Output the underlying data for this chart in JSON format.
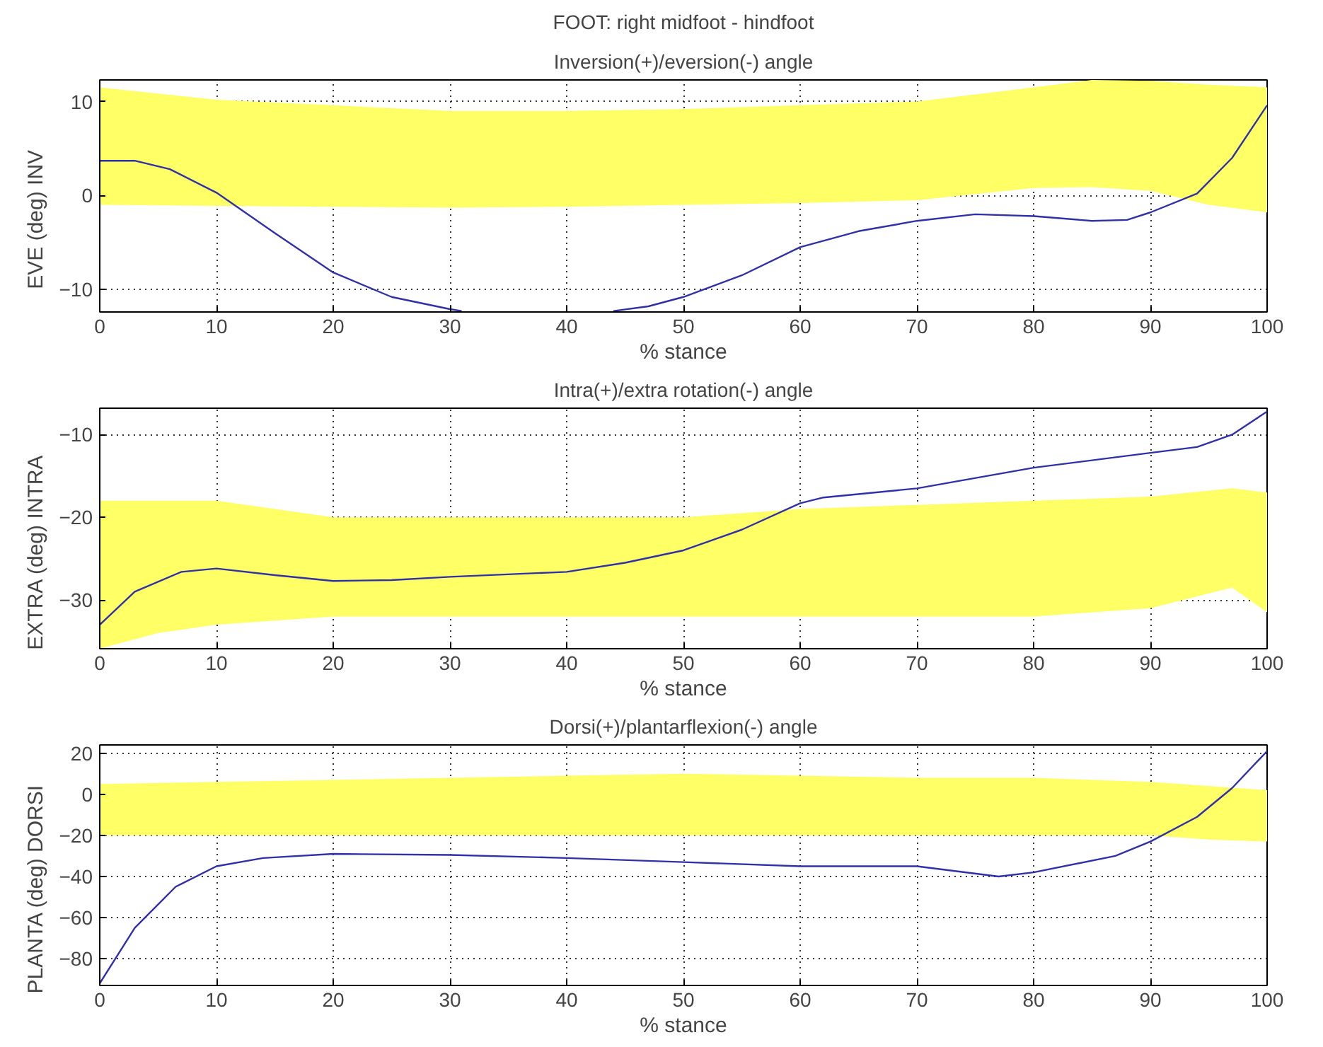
{
  "chart_data": [
    {
      "type": "line",
      "title": "FOOT: right midfoot - hindfoot",
      "subtitle": "Inversion(+)/eversion(-) angle",
      "xlabel": "% stance",
      "ylabel": "EVE     (deg)     INV",
      "xlim": [
        0,
        100
      ],
      "ylim": [
        -12.4,
        12.3
      ],
      "xticks": [
        0,
        10,
        20,
        30,
        40,
        50,
        60,
        70,
        80,
        90,
        100
      ],
      "yticks": [
        -10,
        0,
        10
      ],
      "grid": true,
      "series": [
        {
          "type": "line",
          "color": "#ffff66",
          "x": [
            0,
            10,
            20,
            30,
            40,
            50,
            60,
            70,
            80,
            85,
            90,
            95,
            100
          ],
          "values": [
            null,
            null,
            null,
            null,
            null,
            null,
            null,
            null,
            null,
            null,
            null,
            null,
            null
          ],
          "lower": [
            -1,
            -1.1,
            -1.2,
            -1.3,
            -1.2,
            -1.0,
            -0.8,
            -0.5,
            0.8,
            0.9,
            0.5,
            -1.0,
            -1.8
          ],
          "upper": [
            11.5,
            10.2,
            9.6,
            9.0,
            9.0,
            9.2,
            9.6,
            10.0,
            11.5,
            12.3,
            12.2,
            11.8,
            11.5
          ]
        },
        {
          "type": "line",
          "color": "#3030a8",
          "x": [
            0,
            3,
            6,
            10,
            15,
            20,
            25,
            30,
            31,
            32,
            42,
            44,
            47,
            50,
            55,
            60,
            65,
            70,
            75,
            80,
            85,
            88,
            90,
            94,
            97,
            100
          ],
          "values": [
            3.7,
            3.7,
            2.8,
            0.3,
            -4,
            -8.2,
            -10.8,
            -12.1,
            -12.3,
            null,
            null,
            -12.3,
            -11.8,
            -10.8,
            -8.5,
            -5.5,
            -3.8,
            -2.7,
            -2.0,
            -2.2,
            -2.7,
            -2.6,
            -1.8,
            0.2,
            4,
            9.6
          ]
        }
      ]
    },
    {
      "type": "line",
      "subtitle": "Intra(+)/extra rotation(-) angle",
      "xlabel": "% stance",
      "ylabel": "EXTRA     (deg)     INTRA",
      "xlim": [
        0,
        100
      ],
      "ylim": [
        -35.9,
        -6.8
      ],
      "xticks": [
        0,
        10,
        20,
        30,
        40,
        50,
        60,
        70,
        80,
        90,
        100
      ],
      "yticks": [
        -30,
        -20,
        -10
      ],
      "grid": true,
      "series": [
        {
          "type": "line",
          "color": "#ffff66",
          "x": [
            0,
            5,
            10,
            20,
            30,
            40,
            50,
            60,
            70,
            80,
            90,
            97,
            100
          ],
          "values": [
            null,
            null,
            null,
            null,
            null,
            null,
            null,
            null,
            null,
            null,
            null,
            null,
            null
          ],
          "lower": [
            -35.9,
            -34,
            -33,
            -32,
            -32,
            -32,
            -32,
            -32,
            -32,
            -32,
            -31,
            -28.5,
            -31.5
          ],
          "upper": [
            -18,
            -18,
            -18,
            -20,
            -20,
            -20,
            -20,
            -19,
            -18.5,
            -18,
            -17.5,
            -16.5,
            -17
          ]
        },
        {
          "type": "line",
          "color": "#3030a8",
          "x": [
            0,
            3,
            7,
            10,
            15,
            20,
            25,
            30,
            40,
            45,
            50,
            55,
            60,
            62,
            70,
            80,
            90,
            94,
            97,
            100
          ],
          "values": [
            -33,
            -29,
            -26.6,
            -26.2,
            -27,
            -27.7,
            -27.6,
            -27.2,
            -26.6,
            -25.5,
            -24,
            -21.5,
            -18.3,
            -17.6,
            -16.5,
            -14,
            -12.2,
            -11.5,
            -10,
            -7.2
          ]
        }
      ]
    },
    {
      "type": "line",
      "subtitle": "Dorsi(+)/plantarflexion(-) angle",
      "xlabel": "% stance",
      "ylabel": "PLANTA     (deg)     DORSI",
      "xlim": [
        0,
        100
      ],
      "ylim": [
        -93,
        24
      ],
      "xticks": [
        0,
        10,
        20,
        30,
        40,
        50,
        60,
        70,
        80,
        90,
        100
      ],
      "yticks": [
        -80,
        -60,
        -40,
        -20,
        0,
        20
      ],
      "grid": true,
      "series": [
        {
          "type": "line",
          "color": "#ffff66",
          "x": [
            0,
            10,
            20,
            30,
            40,
            50,
            60,
            70,
            80,
            90,
            95,
            100
          ],
          "values": [
            null,
            null,
            null,
            null,
            null,
            null,
            null,
            null,
            null,
            null,
            null,
            null
          ],
          "lower": [
            -20,
            -20,
            -20,
            -20,
            -20,
            -20,
            -20,
            -20,
            -20,
            -20,
            -22,
            -23
          ],
          "upper": [
            5,
            6,
            7,
            8,
            9,
            10,
            9,
            8,
            8,
            6,
            4,
            2
          ]
        },
        {
          "type": "line",
          "color": "#3030a8",
          "x": [
            0,
            3,
            6.5,
            10,
            14,
            20,
            30,
            40,
            50,
            60,
            70,
            77,
            80,
            87,
            90,
            94,
            97,
            100
          ],
          "values": [
            -92,
            -65,
            -45,
            -35,
            -31,
            -29,
            -29.5,
            -31,
            -33,
            -35,
            -35,
            -40,
            -38,
            -30,
            -23,
            -11,
            3,
            21
          ]
        }
      ]
    }
  ]
}
